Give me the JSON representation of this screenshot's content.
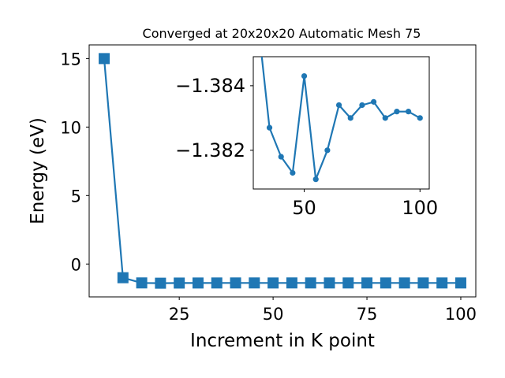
{
  "chart_data": [
    {
      "type": "line",
      "title": "Converged at 20x20x20 Automatic Mesh 75",
      "xlabel": "Increment in K point",
      "ylabel": "Energy (eV)",
      "xlim": [
        1,
        104
      ],
      "ylim": [
        -2.4,
        16
      ],
      "xticks": [
        25,
        50,
        75,
        100
      ],
      "yticks": [
        15,
        10,
        5,
        0
      ],
      "xtick_labels": [
        "25",
        "50",
        "75",
        "100"
      ],
      "ytick_labels": [
        "15",
        "10",
        "5",
        "0"
      ],
      "grid": false,
      "color": "#1f77b4",
      "marker": "square",
      "x": [
        5,
        10,
        15,
        20,
        25,
        30,
        35,
        40,
        45,
        50,
        55,
        60,
        65,
        70,
        75,
        80,
        85,
        90,
        95,
        100
      ],
      "y": [
        15.0,
        -1.0,
        -1.38,
        -1.4,
        -1.39,
        -1.386,
        -1.3836,
        -1.382,
        -1.3813,
        -1.3844,
        -1.3808,
        -1.3821,
        -1.3832,
        -1.3828,
        -1.3832,
        -1.3834,
        -1.3829,
        -1.3831,
        -1.3831,
        -1.3829
      ]
    },
    {
      "type": "line",
      "title": "",
      "xlabel": "",
      "ylabel": "",
      "xlim": [
        28,
        104
      ],
      "ylim": [
        -1.3808,
        -1.3849
      ],
      "xticks": [
        50,
        100
      ],
      "yticks": [
        -1.384,
        -1.382
      ],
      "xtick_labels": [
        "50",
        "100"
      ],
      "ytick_labels": [
        "−1.384",
        "−1.382"
      ],
      "grid": false,
      "color": "#1f77b4",
      "marker": "circle",
      "x": [
        30,
        35,
        40,
        45,
        50,
        55,
        60,
        65,
        70,
        75,
        80,
        85,
        90,
        95,
        100
      ],
      "y": [
        -1.386,
        -1.3827,
        -1.3818,
        -1.3813,
        -1.3843,
        -1.3811,
        -1.382,
        -1.3834,
        -1.383,
        -1.3834,
        -1.3835,
        -1.383,
        -1.3832,
        -1.3832,
        -1.383
      ]
    }
  ]
}
